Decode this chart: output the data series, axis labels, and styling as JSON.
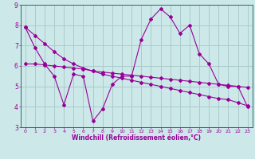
{
  "xlabel": "Windchill (Refroidissement éolien,°C)",
  "bg_color": "#cce8e8",
  "line_color": "#990099",
  "grid_color": "#aacccc",
  "spine_color": "#336666",
  "x_values": [
    0,
    1,
    2,
    3,
    4,
    5,
    6,
    7,
    8,
    9,
    10,
    11,
    12,
    13,
    14,
    15,
    16,
    17,
    18,
    19,
    20,
    21,
    22,
    23
  ],
  "line1": [
    7.9,
    6.9,
    6.1,
    5.5,
    4.1,
    5.6,
    5.5,
    3.3,
    3.9,
    5.1,
    5.5,
    5.5,
    7.3,
    8.3,
    8.8,
    8.4,
    7.6,
    8.0,
    6.6,
    6.1,
    5.1,
    5.0,
    5.0,
    4.0
  ],
  "line2": [
    6.1,
    6.1,
    6.05,
    6.0,
    5.95,
    5.9,
    5.85,
    5.75,
    5.7,
    5.65,
    5.6,
    5.55,
    5.5,
    5.45,
    5.4,
    5.35,
    5.3,
    5.25,
    5.2,
    5.15,
    5.1,
    5.05,
    5.0,
    4.95
  ],
  "line3": [
    7.9,
    7.5,
    7.1,
    6.7,
    6.35,
    6.1,
    5.9,
    5.75,
    5.6,
    5.5,
    5.4,
    5.3,
    5.2,
    5.1,
    5.0,
    4.9,
    4.8,
    4.7,
    4.6,
    4.5,
    4.4,
    4.35,
    4.2,
    4.05
  ],
  "ylim": [
    3,
    9
  ],
  "xlim": [
    -0.5,
    23.5
  ],
  "yticks": [
    3,
    4,
    5,
    6,
    7,
    8,
    9
  ],
  "xticks": [
    0,
    1,
    2,
    3,
    4,
    5,
    6,
    7,
    8,
    9,
    10,
    11,
    12,
    13,
    14,
    15,
    16,
    17,
    18,
    19,
    20,
    21,
    22,
    23
  ]
}
